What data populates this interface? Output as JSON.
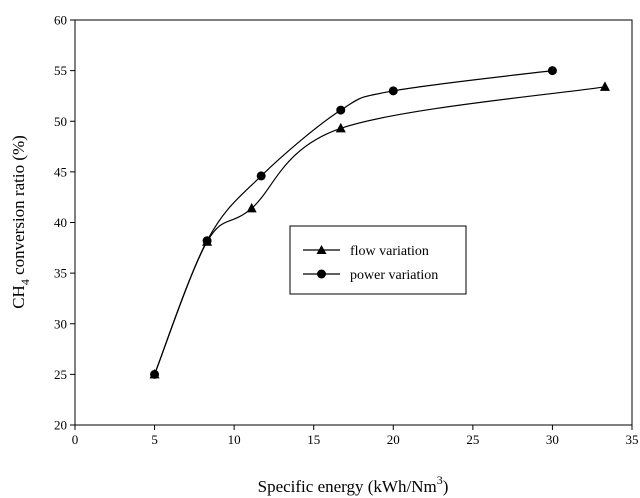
{
  "chart_data": {
    "type": "line",
    "xlabel": "Specific energy (kWh/Nm",
    "xlabel_sup": "3",
    "xlabel_end": ")",
    "ylabel_pre": "CH",
    "ylabel_sub": "4",
    "ylabel_post": " conversion ratio (%)",
    "xlim": [
      0,
      35
    ],
    "ylim": [
      20,
      60
    ],
    "xticks": [
      0,
      5,
      10,
      15,
      20,
      25,
      30,
      35
    ],
    "yticks": [
      20,
      25,
      30,
      35,
      40,
      45,
      50,
      55,
      60
    ],
    "grid": false,
    "legend_position": "center",
    "series": [
      {
        "name": "flow variation",
        "marker": "triangle",
        "x": [
          5.0,
          8.3,
          11.1,
          16.7,
          33.3
        ],
        "y": [
          25.0,
          38.1,
          41.4,
          49.3,
          53.4
        ]
      },
      {
        "name": "power variation",
        "marker": "circle",
        "x": [
          5.0,
          8.3,
          11.7,
          16.7,
          20.0,
          30.0
        ],
        "y": [
          25.0,
          38.2,
          44.6,
          51.1,
          53.0,
          55.0
        ]
      }
    ]
  }
}
